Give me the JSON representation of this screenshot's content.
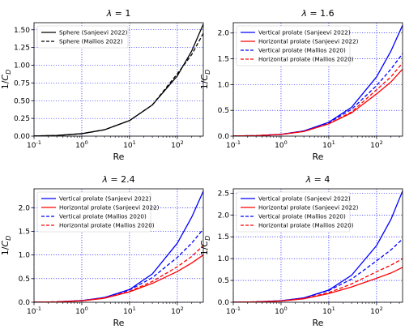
{
  "chart_data": [
    {
      "type": "line",
      "title": "λ = 1",
      "xlabel": "Re",
      "ylabel": "1/C_D",
      "xscale": "log",
      "xlim": [
        0.1,
        350
      ],
      "ylim": [
        0,
        1.6
      ],
      "xticks": [
        "10^-1",
        "10^0",
        "10^1",
        "10^2"
      ],
      "yticks": [
        "0.00",
        "0.25",
        "0.50",
        "0.75",
        "1.00",
        "1.25",
        "1.50"
      ],
      "grid": true,
      "legend_position": "top-left",
      "series": [
        {
          "name": "Sphere (Sanjeevi 2022)",
          "color": "#000000",
          "dash": "solid",
          "x": [
            0.1,
            0.3,
            1,
            3,
            10,
            30,
            100,
            200,
            350
          ],
          "y": [
            0.003,
            0.009,
            0.035,
            0.09,
            0.22,
            0.44,
            0.85,
            1.2,
            1.58
          ]
        },
        {
          "name": "Sphere (Mallios 2022)",
          "color": "#000000",
          "dash": "dashed",
          "x": [
            0.1,
            0.3,
            1,
            3,
            10,
            30,
            100,
            200,
            350
          ],
          "y": [
            0.003,
            0.009,
            0.035,
            0.09,
            0.22,
            0.44,
            0.88,
            1.15,
            1.45
          ]
        }
      ]
    },
    {
      "type": "line",
      "title": "λ = 1.6",
      "xlabel": "Re",
      "ylabel": "1/C_D",
      "xscale": "log",
      "xlim": [
        0.1,
        350
      ],
      "ylim": [
        0,
        2.2
      ],
      "xticks": [
        "10^-1",
        "10^0",
        "10^1",
        "10^2"
      ],
      "yticks": [
        "0.0",
        "0.5",
        "1.0",
        "1.5",
        "2.0"
      ],
      "grid": true,
      "legend_position": "top-left",
      "series": [
        {
          "name": "Vertical prolate (Sanjeevi 2022)",
          "color": "#0000ff",
          "dash": "solid",
          "x": [
            0.1,
            0.3,
            1,
            3,
            10,
            30,
            100,
            200,
            350
          ],
          "y": [
            0.003,
            0.009,
            0.035,
            0.1,
            0.27,
            0.56,
            1.15,
            1.65,
            2.15
          ]
        },
        {
          "name": "Horizontal prolate (Sanjeevi 2022)",
          "color": "#ff0000",
          "dash": "solid",
          "x": [
            0.1,
            0.3,
            1,
            3,
            10,
            30,
            100,
            200,
            350
          ],
          "y": [
            0.003,
            0.009,
            0.033,
            0.09,
            0.24,
            0.45,
            0.82,
            1.05,
            1.3
          ]
        },
        {
          "name": "Vertical prolate (Mallios 2020)",
          "color": "#0000ff",
          "dash": "dashed",
          "x": [
            0.1,
            0.3,
            1,
            3,
            10,
            30,
            100,
            200,
            350
          ],
          "y": [
            0.003,
            0.009,
            0.035,
            0.1,
            0.26,
            0.52,
            0.98,
            1.3,
            1.6
          ]
        },
        {
          "name": "Horizontal prolate (Mallios 2020)",
          "color": "#ff0000",
          "dash": "dashed",
          "x": [
            0.1,
            0.3,
            1,
            3,
            10,
            30,
            100,
            200,
            350
          ],
          "y": [
            0.003,
            0.009,
            0.034,
            0.09,
            0.24,
            0.47,
            0.9,
            1.15,
            1.42
          ]
        }
      ]
    },
    {
      "type": "line",
      "title": "λ = 2.4",
      "xlabel": "Re",
      "ylabel": "1/C_D",
      "xscale": "log",
      "xlim": [
        0.1,
        350
      ],
      "ylim": [
        0,
        2.4
      ],
      "xticks": [
        "10^-1",
        "10^0",
        "10^1",
        "10^2"
      ],
      "yticks": [
        "0.0",
        "0.5",
        "1.0",
        "1.5",
        "2.0"
      ],
      "grid": true,
      "legend_position": "top-left",
      "series": [
        {
          "name": "Vertical prolate (Sanjeevi 2022)",
          "color": "#0000ff",
          "dash": "solid",
          "x": [
            0.1,
            0.3,
            1,
            3,
            10,
            30,
            100,
            200,
            350
          ],
          "y": [
            0.003,
            0.009,
            0.035,
            0.1,
            0.27,
            0.6,
            1.25,
            1.8,
            2.35
          ]
        },
        {
          "name": "Horizontal prolate (Sanjeevi 2022)",
          "color": "#ff0000",
          "dash": "solid",
          "x": [
            0.1,
            0.3,
            1,
            3,
            10,
            30,
            100,
            200,
            350
          ],
          "y": [
            0.003,
            0.009,
            0.03,
            0.085,
            0.22,
            0.4,
            0.65,
            0.83,
            1.0
          ]
        },
        {
          "name": "Vertical prolate (Mallios 2020)",
          "color": "#0000ff",
          "dash": "dashed",
          "x": [
            0.1,
            0.3,
            1,
            3,
            10,
            30,
            100,
            200,
            350
          ],
          "y": [
            0.003,
            0.009,
            0.035,
            0.1,
            0.26,
            0.52,
            0.95,
            1.25,
            1.55
          ]
        },
        {
          "name": "Horizontal prolate (Mallios 2020)",
          "color": "#ff0000",
          "dash": "dashed",
          "x": [
            0.1,
            0.3,
            1,
            3,
            10,
            30,
            100,
            200,
            350
          ],
          "y": [
            0.003,
            0.009,
            0.032,
            0.09,
            0.23,
            0.44,
            0.75,
            0.97,
            1.2
          ]
        }
      ]
    },
    {
      "type": "line",
      "title": "λ = 4",
      "xlabel": "Re",
      "ylabel": "1/C_D",
      "xscale": "log",
      "xlim": [
        0.1,
        350
      ],
      "ylim": [
        0,
        2.6
      ],
      "xticks": [
        "10^-1",
        "10^0",
        "10^1",
        "10^2"
      ],
      "yticks": [
        "0.0",
        "0.5",
        "1.0",
        "1.5",
        "2.0",
        "2.5"
      ],
      "grid": true,
      "legend_position": "top-left",
      "series": [
        {
          "name": "Vertical prolate (Sanjeevi 2022)",
          "color": "#0000ff",
          "dash": "solid",
          "x": [
            0.1,
            0.3,
            1,
            3,
            10,
            30,
            100,
            200,
            350
          ],
          "y": [
            0.003,
            0.009,
            0.035,
            0.1,
            0.28,
            0.62,
            1.3,
            1.9,
            2.55
          ]
        },
        {
          "name": "Horizontal prolate (Sanjeevi 2022)",
          "color": "#ff0000",
          "dash": "solid",
          "x": [
            0.1,
            0.3,
            1,
            3,
            10,
            30,
            100,
            200,
            350
          ],
          "y": [
            0.003,
            0.009,
            0.028,
            0.08,
            0.2,
            0.35,
            0.55,
            0.67,
            0.8
          ]
        },
        {
          "name": "Vertical prolate (Mallios 2020)",
          "color": "#0000ff",
          "dash": "dashed",
          "x": [
            0.1,
            0.3,
            1,
            3,
            10,
            30,
            100,
            200,
            350
          ],
          "y": [
            0.003,
            0.009,
            0.035,
            0.1,
            0.27,
            0.53,
            0.95,
            1.2,
            1.45
          ]
        },
        {
          "name": "Horizontal prolate (Mallios 2020)",
          "color": "#ff0000",
          "dash": "dashed",
          "x": [
            0.1,
            0.3,
            1,
            3,
            10,
            30,
            100,
            200,
            350
          ],
          "y": [
            0.003,
            0.009,
            0.03,
            0.085,
            0.22,
            0.42,
            0.7,
            0.85,
            1.0
          ]
        }
      ]
    }
  ]
}
